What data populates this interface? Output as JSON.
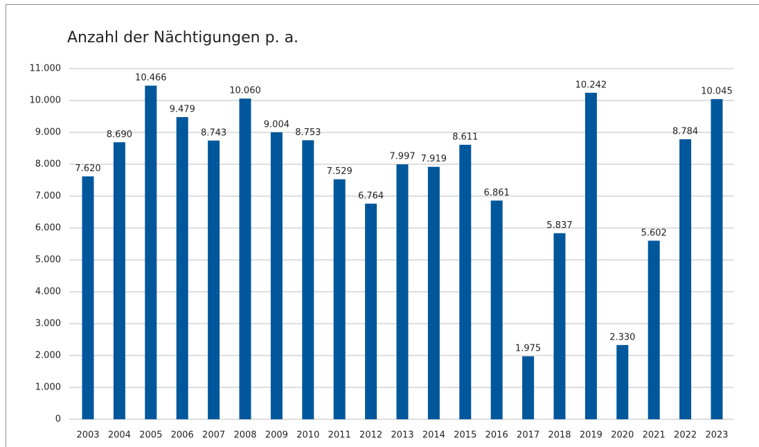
{
  "chart_data": {
    "type": "bar",
    "title": "Anzahl der Nächtigungen p. a.",
    "categories": [
      "2003",
      "2004",
      "2005",
      "2006",
      "2007",
      "2008",
      "2009",
      "2010",
      "2011",
      "2012",
      "2013",
      "2014",
      "2015",
      "2016",
      "2017",
      "2018",
      "2019",
      "2020",
      "2021",
      "2022",
      "2023"
    ],
    "values": [
      7620,
      8690,
      10466,
      9479,
      8743,
      10060,
      9004,
      8753,
      7529,
      6764,
      7997,
      7919,
      8611,
      6861,
      1975,
      5837,
      10242,
      2330,
      5602,
      8784,
      10045
    ],
    "value_labels": [
      "7.620",
      "8.690",
      "10.466",
      "9.479",
      "8.743",
      "10.060",
      "9.004",
      "8.753",
      "7.529",
      "6.764",
      "7.997",
      "7.919",
      "8.611",
      "6.861",
      "1.975",
      "5.837",
      "10.242",
      "2.330",
      "5.602",
      "8.784",
      "10.045"
    ],
    "color": "#00579b",
    "ylim": [
      0,
      11000
    ],
    "yticks": [
      0,
      {
        "value": 1000,
        "label": "1.000"
      },
      {
        "value": 2000,
        "label": "2.000"
      },
      {
        "value": 3000,
        "label": "3.000"
      },
      {
        "value": 4000,
        "label": "4.000"
      },
      {
        "value": 5000,
        "label": "5.000"
      },
      {
        "value": 6000,
        "label": "6.000"
      },
      {
        "value": 7000,
        "label": "7.000"
      },
      {
        "value": 8000,
        "label": "8.000"
      },
      {
        "value": 9000,
        "label": "9.000"
      },
      {
        "value": 10000,
        "label": "10.000"
      },
      {
        "value": 11000,
        "label": "11.000"
      }
    ],
    "grid": true
  }
}
